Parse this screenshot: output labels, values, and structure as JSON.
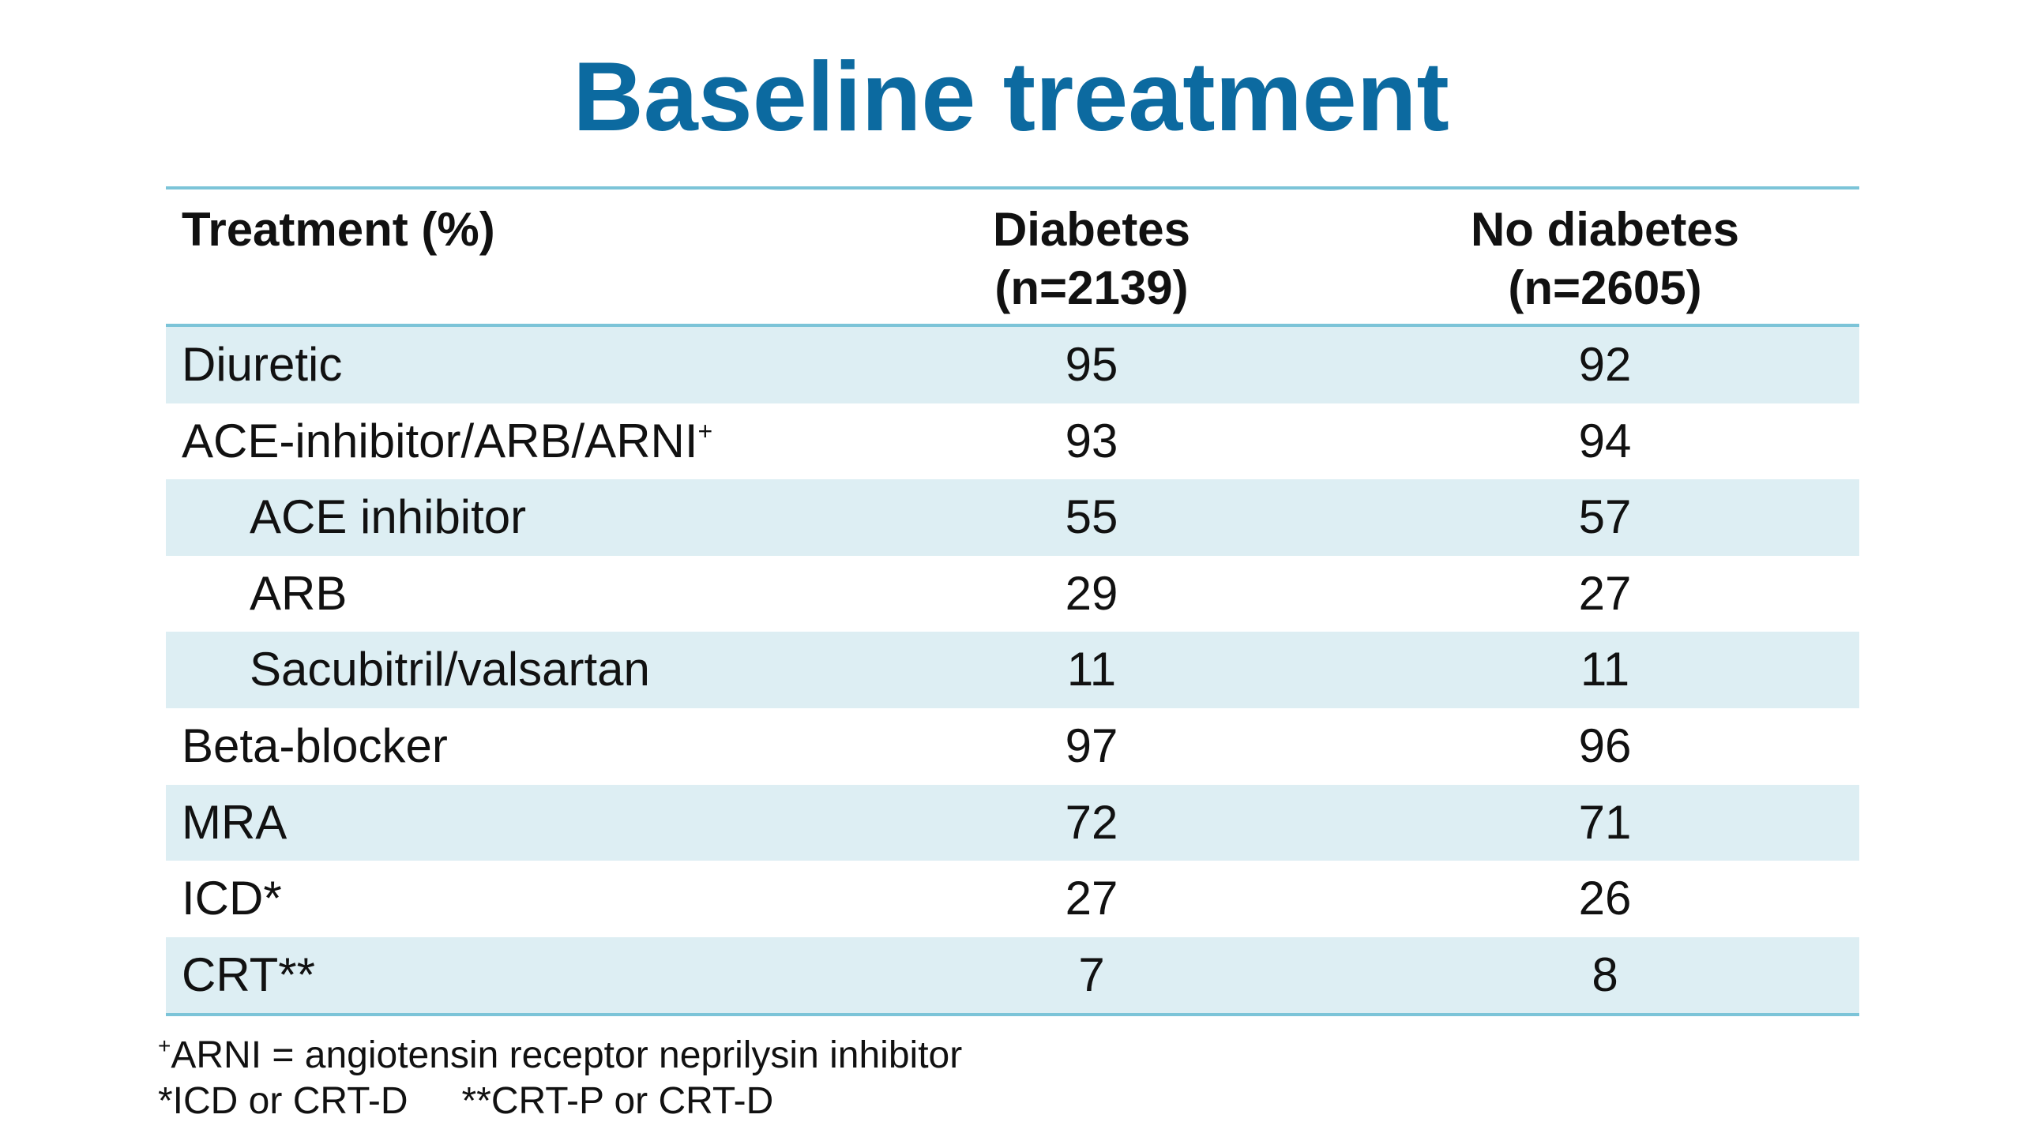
{
  "title": "Baseline treatment",
  "table": {
    "headers": {
      "treatment": "Treatment (%)",
      "diabetes_line1": "Diabetes",
      "diabetes_line2": "(n=2139)",
      "no_diabetes_line1": "No diabetes",
      "no_diabetes_line2": "(n=2605)"
    },
    "rows": [
      {
        "label": "Diuretic",
        "mark": "",
        "diabetes": "95",
        "no_diabetes": "92",
        "indent": false,
        "shaded": true
      },
      {
        "label": "ACE-inhibitor/ARB/ARNI",
        "mark": "+",
        "diabetes": "93",
        "no_diabetes": "94",
        "indent": false,
        "shaded": false
      },
      {
        "label": "ACE inhibitor",
        "mark": "",
        "diabetes": "55",
        "no_diabetes": "57",
        "indent": true,
        "shaded": true
      },
      {
        "label": "ARB",
        "mark": "",
        "diabetes": "29",
        "no_diabetes": "27",
        "indent": true,
        "shaded": false
      },
      {
        "label": "Sacubitril/valsartan",
        "mark": "",
        "diabetes": "11",
        "no_diabetes": "11",
        "indent": true,
        "shaded": true
      },
      {
        "label": "Beta-blocker",
        "mark": "",
        "diabetes": "97",
        "no_diabetes": "96",
        "indent": false,
        "shaded": false
      },
      {
        "label": "MRA",
        "mark": "",
        "diabetes": "72",
        "no_diabetes": "71",
        "indent": false,
        "shaded": true
      },
      {
        "label": "ICD*",
        "mark": "",
        "diabetes": "27",
        "no_diabetes": "26",
        "indent": false,
        "shaded": false
      },
      {
        "label": "CRT**",
        "mark": "",
        "diabetes": "7",
        "no_diabetes": "8",
        "indent": false,
        "shaded": true
      }
    ]
  },
  "footnotes": {
    "arni_mark": "+",
    "arni_text": "ARNI = angiotensin receptor neprilysin inhibitor",
    "icd_text": "*ICD or CRT-D",
    "crt_text": "**CRT-P or CRT-D"
  },
  "colors": {
    "title": "#0c6aa0",
    "rule": "#7cc4d8",
    "row_shade": "#ddeef3"
  }
}
